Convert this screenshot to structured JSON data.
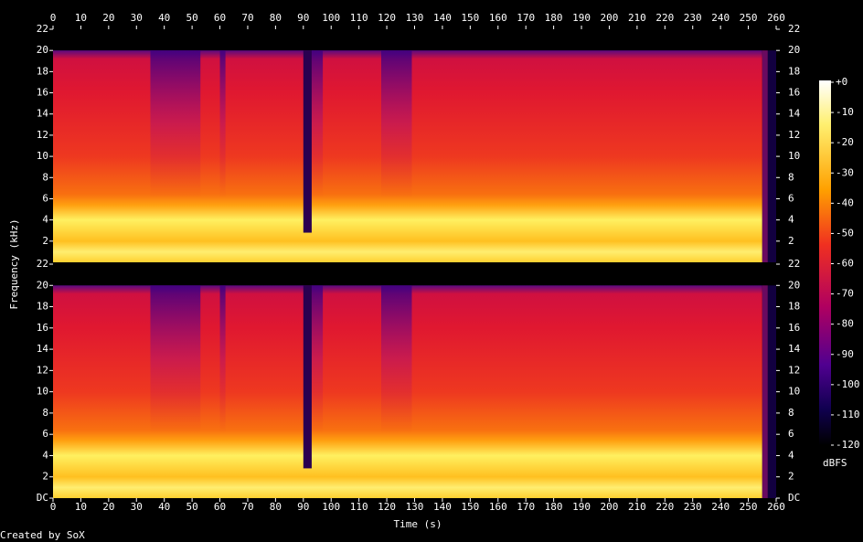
{
  "chart_data": {
    "type": "spectrogram",
    "xlabel": "Time (s)",
    "ylabel": "Frequency (kHz)",
    "xlim": [
      0,
      260
    ],
    "xticks": [
      0,
      10,
      20,
      30,
      40,
      50,
      60,
      70,
      80,
      90,
      100,
      110,
      120,
      130,
      140,
      150,
      160,
      170,
      180,
      190,
      200,
      210,
      220,
      230,
      240,
      250,
      260
    ],
    "panels": [
      {
        "ylim": [
          0,
          22
        ],
        "yticks": [
          2,
          4,
          6,
          8,
          10,
          12,
          14,
          16,
          18,
          20,
          22
        ]
      },
      {
        "ylim": [
          0,
          22
        ],
        "yticks": [
          {
            "value": 0,
            "label": "DC"
          },
          2,
          4,
          6,
          8,
          10,
          12,
          14,
          16,
          18,
          20,
          22
        ]
      }
    ],
    "colorbar": {
      "label": "dBFS",
      "zlim": [
        -120,
        0
      ],
      "zticks": [
        {
          "value": 0,
          "label": "+0"
        },
        -10,
        -20,
        -30,
        -40,
        -50,
        -60,
        -70,
        -80,
        -90,
        -100,
        -110,
        -120
      ]
    },
    "footer": "Created by SoX"
  }
}
